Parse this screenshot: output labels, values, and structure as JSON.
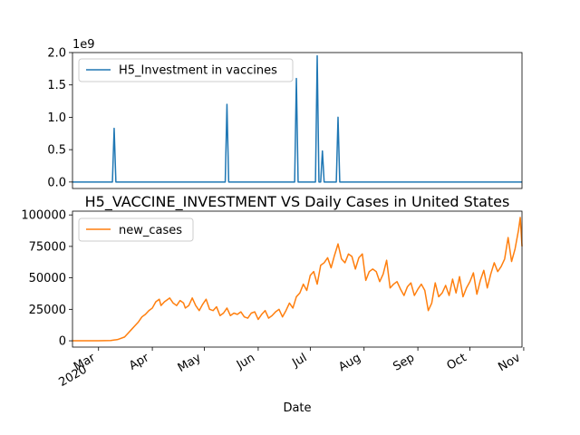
{
  "chart_data": [
    {
      "type": "line",
      "title": "",
      "offset_text": "1e9",
      "ylim": [
        -0.1,
        2.0
      ],
      "yticks": [
        0.0,
        0.5,
        1.0,
        1.5,
        2.0
      ],
      "ytick_labels": [
        "0.0",
        "0.5",
        "1.0",
        "1.5",
        "2.0"
      ],
      "legend": "top-left",
      "colors": {
        "series": "#1f77b4"
      },
      "x_range": [
        "2020-02-15",
        "2020-10-31"
      ],
      "series": [
        {
          "name": "H5_Investment in vaccines",
          "unit_multiplier": 1000000000,
          "points": [
            [
              "2020-02-15",
              0.0
            ],
            [
              "2020-03-09",
              0.0
            ],
            [
              "2020-03-10",
              0.83
            ],
            [
              "2020-03-11",
              0.0
            ],
            [
              "2020-05-13",
              0.0
            ],
            [
              "2020-05-14",
              1.2
            ],
            [
              "2020-05-15",
              0.0
            ],
            [
              "2020-06-22",
              0.0
            ],
            [
              "2020-06-23",
              1.6
            ],
            [
              "2020-06-24",
              0.0
            ],
            [
              "2020-07-04",
              0.0
            ],
            [
              "2020-07-05",
              1.95
            ],
            [
              "2020-07-06",
              0.0
            ],
            [
              "2020-07-07",
              0.0
            ],
            [
              "2020-07-08",
              0.48
            ],
            [
              "2020-07-09",
              0.0
            ],
            [
              "2020-07-10",
              0.0
            ],
            [
              "2020-07-15",
              0.0
            ],
            [
              "2020-07-16",
              0.0
            ],
            [
              "2020-07-17",
              1.0
            ],
            [
              "2020-07-18",
              0.0
            ],
            [
              "2020-10-31",
              0.0
            ]
          ]
        }
      ]
    },
    {
      "type": "line",
      "title": "H5_VACCINE_INVESTMENT VS Daily Cases in United States",
      "xlabel": "Date",
      "ylim": [
        -5000,
        103000
      ],
      "yticks": [
        0,
        25000,
        50000,
        75000,
        100000
      ],
      "ytick_labels": [
        "0",
        "25000",
        "50000",
        "75000",
        "100000"
      ],
      "xticks": [
        "2020-03-01",
        "2020-04-01",
        "2020-05-01",
        "2020-06-01",
        "2020-07-01",
        "2020-08-01",
        "2020-09-01",
        "2020-10-01",
        "2020-11-01"
      ],
      "xtick_labels": [
        "Mar\n2020",
        "Apr",
        "May",
        "Jun",
        "Jul",
        "Aug",
        "Sep",
        "Oct",
        "Nov"
      ],
      "x_range": [
        "2020-02-15",
        "2020-10-31"
      ],
      "legend": "top-left",
      "colors": {
        "series": "#ff7f0e"
      },
      "series": [
        {
          "name": "new_cases",
          "points": [
            [
              "2020-02-15",
              0
            ],
            [
              "2020-03-01",
              0
            ],
            [
              "2020-03-08",
              200
            ],
            [
              "2020-03-12",
              1000
            ],
            [
              "2020-03-16",
              3000
            ],
            [
              "2020-03-18",
              6000
            ],
            [
              "2020-03-20",
              9000
            ],
            [
              "2020-03-22",
              12000
            ],
            [
              "2020-03-24",
              15000
            ],
            [
              "2020-03-26",
              19000
            ],
            [
              "2020-03-28",
              21000
            ],
            [
              "2020-03-30",
              24000
            ],
            [
              "2020-04-01",
              26000
            ],
            [
              "2020-04-03",
              31000
            ],
            [
              "2020-04-05",
              33000
            ],
            [
              "2020-04-06",
              28000
            ],
            [
              "2020-04-08",
              31000
            ],
            [
              "2020-04-10",
              33000
            ],
            [
              "2020-04-11",
              34000
            ],
            [
              "2020-04-13",
              30000
            ],
            [
              "2020-04-15",
              28000
            ],
            [
              "2020-04-17",
              32000
            ],
            [
              "2020-04-19",
              30000
            ],
            [
              "2020-04-20",
              26000
            ],
            [
              "2020-04-22",
              28000
            ],
            [
              "2020-04-24",
              34000
            ],
            [
              "2020-04-26",
              28000
            ],
            [
              "2020-04-28",
              24000
            ],
            [
              "2020-04-30",
              29000
            ],
            [
              "2020-05-02",
              33000
            ],
            [
              "2020-05-04",
              25000
            ],
            [
              "2020-05-06",
              24000
            ],
            [
              "2020-05-08",
              27000
            ],
            [
              "2020-05-10",
              20000
            ],
            [
              "2020-05-12",
              22000
            ],
            [
              "2020-05-14",
              26000
            ],
            [
              "2020-05-16",
              20000
            ],
            [
              "2020-05-18",
              22000
            ],
            [
              "2020-05-20",
              21000
            ],
            [
              "2020-05-22",
              23000
            ],
            [
              "2020-05-24",
              19000
            ],
            [
              "2020-05-26",
              18000
            ],
            [
              "2020-05-28",
              22000
            ],
            [
              "2020-05-30",
              23000
            ],
            [
              "2020-06-01",
              17000
            ],
            [
              "2020-06-03",
              21000
            ],
            [
              "2020-06-05",
              24000
            ],
            [
              "2020-06-07",
              18000
            ],
            [
              "2020-06-09",
              20000
            ],
            [
              "2020-06-11",
              23000
            ],
            [
              "2020-06-13",
              25000
            ],
            [
              "2020-06-15",
              19000
            ],
            [
              "2020-06-17",
              24000
            ],
            [
              "2020-06-19",
              30000
            ],
            [
              "2020-06-21",
              26000
            ],
            [
              "2020-06-23",
              35000
            ],
            [
              "2020-06-25",
              38000
            ],
            [
              "2020-06-27",
              45000
            ],
            [
              "2020-06-29",
              40000
            ],
            [
              "2020-07-01",
              52000
            ],
            [
              "2020-07-03",
              55000
            ],
            [
              "2020-07-05",
              45000
            ],
            [
              "2020-07-07",
              60000
            ],
            [
              "2020-07-09",
              62000
            ],
            [
              "2020-07-11",
              66000
            ],
            [
              "2020-07-13",
              58000
            ],
            [
              "2020-07-15",
              68000
            ],
            [
              "2020-07-17",
              77000
            ],
            [
              "2020-07-19",
              65000
            ],
            [
              "2020-07-21",
              62000
            ],
            [
              "2020-07-23",
              69000
            ],
            [
              "2020-07-25",
              67000
            ],
            [
              "2020-07-27",
              57000
            ],
            [
              "2020-07-29",
              66000
            ],
            [
              "2020-07-31",
              69000
            ],
            [
              "2020-08-02",
              48000
            ],
            [
              "2020-08-04",
              55000
            ],
            [
              "2020-08-06",
              57000
            ],
            [
              "2020-08-08",
              55000
            ],
            [
              "2020-08-10",
              47000
            ],
            [
              "2020-08-12",
              53000
            ],
            [
              "2020-08-14",
              64000
            ],
            [
              "2020-08-16",
              42000
            ],
            [
              "2020-08-18",
              45000
            ],
            [
              "2020-08-20",
              47000
            ],
            [
              "2020-08-22",
              41000
            ],
            [
              "2020-08-24",
              36000
            ],
            [
              "2020-08-26",
              43000
            ],
            [
              "2020-08-28",
              46000
            ],
            [
              "2020-08-30",
              36000
            ],
            [
              "2020-09-01",
              41000
            ],
            [
              "2020-09-03",
              45000
            ],
            [
              "2020-09-05",
              40000
            ],
            [
              "2020-09-07",
              24000
            ],
            [
              "2020-09-09",
              30000
            ],
            [
              "2020-09-11",
              46000
            ],
            [
              "2020-09-13",
              35000
            ],
            [
              "2020-09-15",
              38000
            ],
            [
              "2020-09-17",
              44000
            ],
            [
              "2020-09-19",
              36000
            ],
            [
              "2020-09-21",
              49000
            ],
            [
              "2020-09-23",
              38000
            ],
            [
              "2020-09-25",
              51000
            ],
            [
              "2020-09-27",
              35000
            ],
            [
              "2020-09-29",
              42000
            ],
            [
              "2020-10-01",
              47000
            ],
            [
              "2020-10-03",
              54000
            ],
            [
              "2020-10-05",
              37000
            ],
            [
              "2020-10-07",
              48000
            ],
            [
              "2020-10-09",
              56000
            ],
            [
              "2020-10-11",
              42000
            ],
            [
              "2020-10-13",
              53000
            ],
            [
              "2020-10-15",
              62000
            ],
            [
              "2020-10-17",
              55000
            ],
            [
              "2020-10-19",
              59000
            ],
            [
              "2020-10-21",
              65000
            ],
            [
              "2020-10-23",
              82000
            ],
            [
              "2020-10-25",
              63000
            ],
            [
              "2020-10-27",
              73000
            ],
            [
              "2020-10-29",
              88000
            ],
            [
              "2020-10-30",
              98000
            ],
            [
              "2020-10-31",
              75000
            ]
          ]
        }
      ]
    }
  ]
}
